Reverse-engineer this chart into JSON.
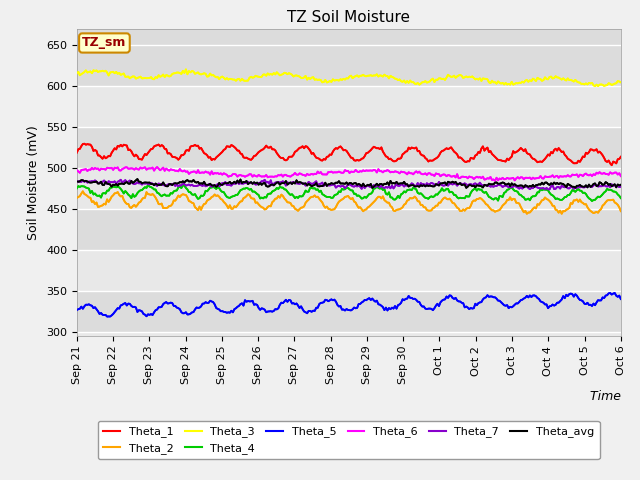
{
  "title": "TZ Soil Moisture",
  "xlabel": "Time",
  "ylabel": "Soil Moisture (mV)",
  "ylim": [
    295,
    670
  ],
  "background_color": "#e8e8e8",
  "figure_background": "#f0f0f0",
  "legend_box_label": "TZ_sm",
  "series_order": [
    "Theta_1",
    "Theta_2",
    "Theta_3",
    "Theta_4",
    "Theta_5",
    "Theta_6",
    "Theta_7",
    "Theta_avg"
  ],
  "series": {
    "Theta_1": {
      "color": "#ff0000",
      "base": 521,
      "amplitude": 8,
      "trend": -7,
      "freq": 1.0,
      "phase": 0.0
    },
    "Theta_2": {
      "color": "#ffa500",
      "base": 461,
      "amplitude": 8,
      "trend": -8,
      "freq": 1.1,
      "phase": 0.3
    },
    "Theta_3": {
      "color": "#ffff00",
      "base": 615,
      "amplitude": 4,
      "trend": -10,
      "freq": 0.4,
      "phase": 0.0
    },
    "Theta_4": {
      "color": "#00cc00",
      "base": 472,
      "amplitude": 6,
      "trend": -5,
      "freq": 1.1,
      "phase": 0.5
    },
    "Theta_5": {
      "color": "#0000ff",
      "base": 326,
      "amplitude": 7,
      "trend": 14,
      "freq": 0.9,
      "phase": 0.0
    },
    "Theta_6": {
      "color": "#ff00ff",
      "base": 497,
      "amplitude": 4,
      "trend": -8,
      "freq": 0.15,
      "phase": 0.0
    },
    "Theta_7": {
      "color": "#8800cc",
      "base": 482,
      "amplitude": 2,
      "trend": -5,
      "freq": 0.2,
      "phase": 1.0
    },
    "Theta_avg": {
      "color": "#000000",
      "base": 482,
      "amplitude": 2,
      "trend": -3,
      "freq": 0.7,
      "phase": 0.5
    }
  },
  "xtick_labels": [
    "Sep 21",
    "Sep 22",
    "Sep 23",
    "Sep 24",
    "Sep 25",
    "Sep 26",
    "Sep 27",
    "Sep 28",
    "Sep 29",
    "Sep 30",
    "Oct 1",
    "Oct 2",
    "Oct 3",
    "Oct 4",
    "Oct 5",
    "Oct 6"
  ],
  "ytick_values": [
    300,
    350,
    400,
    450,
    500,
    550,
    600,
    650
  ],
  "title_fontsize": 11,
  "axis_label_fontsize": 9,
  "tick_fontsize": 8,
  "legend_fontsize": 8,
  "grid_colors": [
    "#d8d8d8",
    "#e8e8e8"
  ]
}
